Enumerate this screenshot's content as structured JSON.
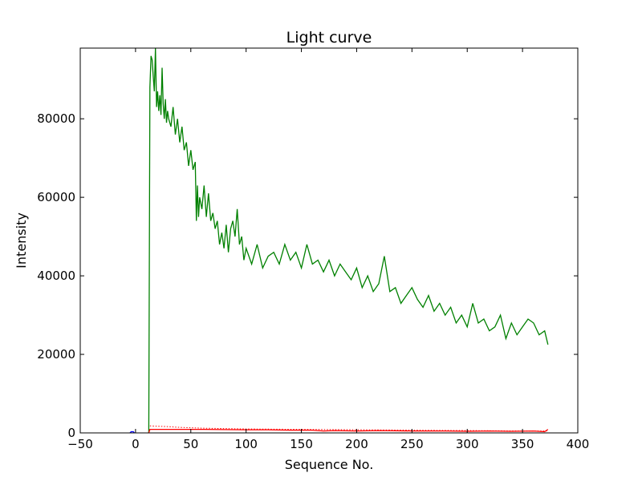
{
  "chart_data": {
    "type": "line",
    "title": "Light curve",
    "xlabel": "Sequence No.",
    "ylabel": "Intensity",
    "xlim": [
      -50,
      400
    ],
    "ylim": [
      0,
      98000
    ],
    "xticks": [
      -50,
      0,
      50,
      100,
      150,
      200,
      250,
      300,
      350,
      400
    ],
    "yticks": [
      0,
      20000,
      40000,
      60000,
      80000
    ],
    "grid": false,
    "legend": "none",
    "series": [
      {
        "color": "#008000",
        "style": "solid",
        "x": [
          12,
          13,
          14,
          15,
          16,
          17,
          18,
          19,
          20,
          21,
          22,
          23,
          24,
          25,
          26,
          27,
          28,
          29,
          30,
          32,
          34,
          36,
          38,
          40,
          42,
          44,
          46,
          48,
          50,
          52,
          54,
          55,
          56,
          57,
          58,
          60,
          62,
          64,
          66,
          68,
          70,
          72,
          74,
          76,
          78,
          80,
          82,
          84,
          86,
          88,
          90,
          92,
          94,
          96,
          98,
          100,
          105,
          110,
          115,
          120,
          125,
          130,
          135,
          140,
          145,
          150,
          155,
          160,
          165,
          170,
          175,
          180,
          185,
          190,
          195,
          200,
          205,
          210,
          215,
          220,
          225,
          230,
          235,
          240,
          245,
          250,
          255,
          260,
          265,
          270,
          275,
          280,
          285,
          290,
          295,
          300,
          305,
          310,
          315,
          320,
          325,
          330,
          335,
          340,
          345,
          350,
          355,
          360,
          365,
          370,
          373
        ],
        "y": [
          0,
          88000,
          96000,
          95000,
          91000,
          87000,
          98000,
          83000,
          87000,
          82000,
          86000,
          81000,
          93000,
          84000,
          80000,
          85000,
          79000,
          82000,
          80000,
          78000,
          83000,
          76000,
          80000,
          74000,
          78000,
          72000,
          74000,
          68000,
          72000,
          67000,
          69000,
          54000,
          63000,
          55000,
          60000,
          57000,
          63000,
          55000,
          61000,
          54000,
          56000,
          52000,
          54000,
          48000,
          51000,
          47000,
          53000,
          46000,
          52000,
          54000,
          50000,
          57000,
          48000,
          50000,
          44000,
          47000,
          43000,
          48000,
          42000,
          45000,
          46000,
          43000,
          48000,
          44000,
          46000,
          42000,
          48000,
          43000,
          44000,
          41000,
          44000,
          40000,
          43000,
          41000,
          39000,
          42000,
          37000,
          40000,
          36000,
          38000,
          45000,
          36000,
          37000,
          33000,
          35000,
          37000,
          34000,
          32000,
          35000,
          31000,
          33000,
          30000,
          32000,
          28000,
          30000,
          27000,
          33000,
          28000,
          29000,
          26000,
          27000,
          30000,
          24000,
          28000,
          25000,
          27000,
          29000,
          28000,
          25000,
          26000,
          22500
        ]
      },
      {
        "color": "#ff0000",
        "style": "solid",
        "x": [
          12,
          13,
          60,
          100,
          120,
          140,
          160,
          170,
          180,
          200,
          220,
          250,
          280,
          300,
          320,
          340,
          360,
          370,
          373
        ],
        "y": [
          0,
          900,
          900,
          800,
          800,
          700,
          700,
          500,
          600,
          500,
          600,
          500,
          500,
          400,
          500,
          400,
          500,
          300,
          900
        ]
      },
      {
        "color": "#ff0000",
        "style": "dotted",
        "x": [
          13,
          20,
          30,
          40,
          50,
          60,
          80,
          100,
          150,
          200,
          250,
          300,
          350,
          373
        ],
        "y": [
          1800,
          1700,
          1600,
          1400,
          1300,
          1200,
          1100,
          1000,
          900,
          800,
          700,
          600,
          500,
          500
        ]
      },
      {
        "color": "#0000ff",
        "style": "solid",
        "x": [
          -5,
          -4,
          -3,
          -2,
          -1
        ],
        "y": [
          0,
          300,
          300,
          300,
          0
        ]
      }
    ]
  }
}
